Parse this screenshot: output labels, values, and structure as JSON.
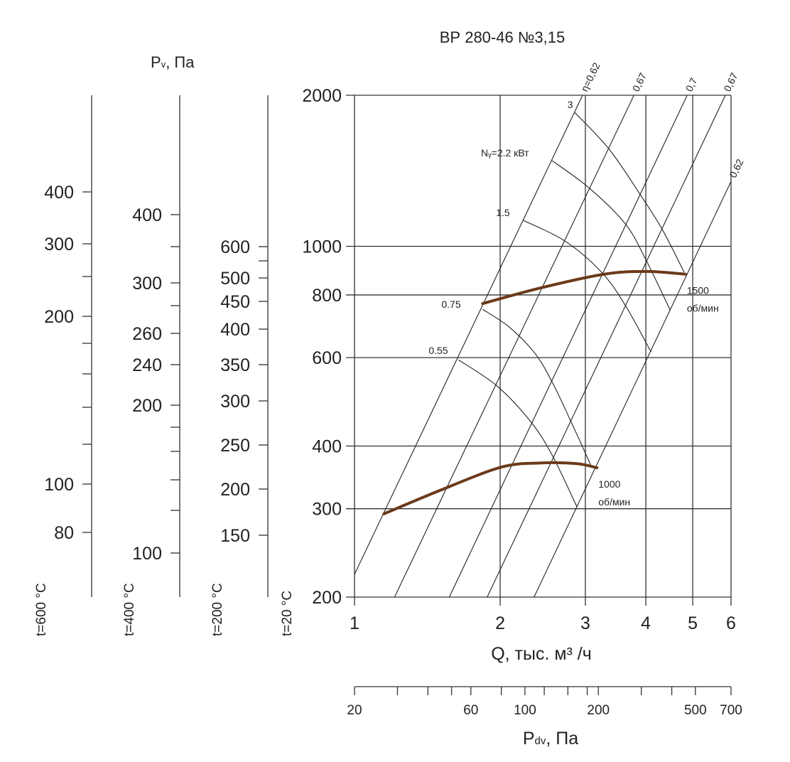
{
  "chart_data": {
    "type": "line",
    "title": "ВР 280-46 №3,15",
    "xlabel": "Q, тыс. м³ /ч",
    "ylabel_main": "Pv, Па",
    "ylabel_parts": {
      "base": "P",
      "sub": "v",
      "rest": ", Па"
    },
    "x_scale": "log",
    "y_scale": "log",
    "xlim": [
      1,
      6
    ],
    "ylim": [
      200,
      2000
    ],
    "grid": true,
    "x_ticks": [
      "1",
      "2",
      "3",
      "4",
      "5",
      "6"
    ],
    "x_tick_values": [
      1,
      2,
      3,
      4,
      5,
      6
    ],
    "y_ticks": [
      "200",
      "300",
      "400",
      "600",
      "800",
      "1000",
      "2000"
    ],
    "y_tick_values": [
      200,
      300,
      400,
      600,
      800,
      1000,
      2000
    ],
    "rpm_curves": [
      {
        "name": "1500",
        "unit": "об/мин",
        "points": [
          [
            1.84,
            769
          ],
          [
            2.42,
            826
          ],
          [
            3.28,
            880
          ],
          [
            4.01,
            891
          ],
          [
            4.83,
            880
          ]
        ]
      },
      {
        "name": "1000",
        "unit": "об/мин",
        "points": [
          [
            1.15,
            293
          ],
          [
            1.51,
            327
          ],
          [
            2.01,
            363
          ],
          [
            2.42,
            370
          ],
          [
            2.88,
            369
          ],
          [
            3.17,
            362
          ]
        ]
      }
    ],
    "efficiency_lines": [
      {
        "label": "η=0,62",
        "points": [
          [
            1.0,
            222
          ],
          [
            2.96,
            2000
          ]
        ]
      },
      {
        "label": "0,67",
        "points": [
          [
            1.21,
            200
          ],
          [
            3.78,
            2000
          ]
        ]
      },
      {
        "label": "0,7",
        "points": [
          [
            1.57,
            200
          ],
          [
            4.87,
            2000
          ]
        ]
      },
      {
        "label": "0,67",
        "points": [
          [
            1.88,
            200
          ],
          [
            5.84,
            2000
          ]
        ]
      },
      {
        "label": "0,62",
        "points": [
          [
            2.35,
            200
          ],
          [
            6.0,
            1347
          ]
        ]
      }
    ],
    "power_curves": [
      {
        "label": "3",
        "points": [
          [
            2.85,
            1849
          ],
          [
            3.36,
            1561
          ],
          [
            3.88,
            1275
          ],
          [
            4.32,
            1083
          ],
          [
            4.8,
            888
          ]
        ]
      },
      {
        "label": "Nᵧ=2.2 кВт",
        "points": [
          [
            2.56,
            1482
          ],
          [
            3.06,
            1305
          ],
          [
            3.63,
            1108
          ],
          [
            4.01,
            936
          ],
          [
            4.49,
            747
          ]
        ]
      },
      {
        "label": "1.5",
        "points": [
          [
            2.23,
            1127
          ],
          [
            2.72,
            1025
          ],
          [
            3.24,
            888
          ],
          [
            3.63,
            762
          ],
          [
            4.1,
            616
          ]
        ]
      },
      {
        "label": "0.75",
        "points": [
          [
            1.84,
            749
          ],
          [
            2.09,
            690
          ],
          [
            2.36,
            612
          ],
          [
            2.56,
            537
          ],
          [
            2.8,
            448
          ],
          [
            3.08,
            366
          ]
        ]
      },
      {
        "label": "0.55",
        "points": [
          [
            1.64,
            594
          ],
          [
            1.97,
            527
          ],
          [
            2.31,
            448
          ],
          [
            2.56,
            384
          ],
          [
            2.88,
            303
          ]
        ]
      }
    ],
    "temperature_scales": [
      {
        "label": "t=600 °C",
        "ticks": [
          "400",
          "300",
          "",
          "200",
          "",
          "",
          "",
          "",
          "100",
          "80"
        ]
      },
      {
        "label": "t=400 °C",
        "ticks": [
          "400",
          "",
          "300",
          "",
          "260",
          "240",
          "200",
          "",
          "",
          "",
          "",
          "100"
        ]
      },
      {
        "label": "t=200 °C",
        "ticks": [
          "600",
          "",
          "500",
          "450",
          "400",
          "350",
          "300",
          "250",
          "200",
          "150"
        ]
      },
      {
        "label": "t=20 °C",
        "ticks": []
      }
    ],
    "pdv_axis": {
      "label_parts": {
        "base": "P",
        "sub": "dv",
        "rest": ", Па"
      },
      "scale": "log",
      "range": [
        20,
        700
      ],
      "tick_values": [
        20,
        30,
        40,
        50,
        60,
        80,
        100,
        120,
        150,
        180,
        200,
        300,
        400,
        500,
        700
      ],
      "tick_labels": [
        "20",
        "",
        "",
        "",
        "60",
        "",
        "100",
        "",
        "",
        "",
        "200",
        "",
        "",
        "500",
        "700"
      ]
    },
    "colors": {
      "rpm_curve": "#6b3a1a",
      "lines": "#222222",
      "grid": "#333333"
    }
  }
}
